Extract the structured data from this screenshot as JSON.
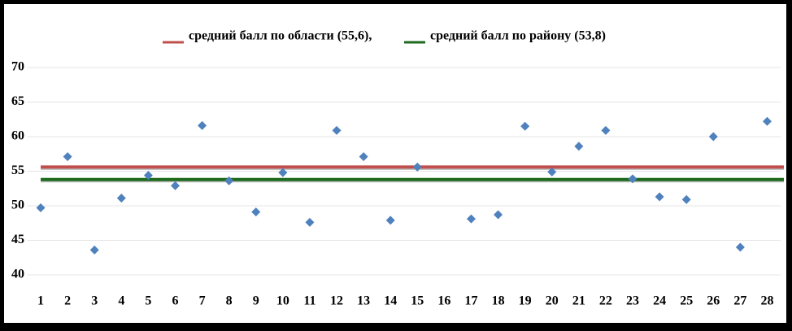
{
  "chart_data": {
    "type": "scatter",
    "categories": [
      "1",
      "2",
      "3",
      "4",
      "5",
      "6",
      "7",
      "8",
      "9",
      "10",
      "11",
      "12",
      "13",
      "14",
      "15",
      "16",
      "17",
      "18",
      "19",
      "20",
      "21",
      "22",
      "23",
      "24",
      "25",
      "26",
      "27",
      "28"
    ],
    "series": [
      {
        "color": "#4f81bd",
        "values": [
          49.7,
          57.1,
          43.6,
          51.1,
          54.4,
          52.9,
          61.6,
          53.6,
          49.1,
          54.8,
          47.6,
          60.9,
          57.1,
          47.9,
          55.6,
          null,
          48.1,
          48.7,
          61.5,
          54.9,
          58.6,
          60.9,
          53.9,
          51.3,
          50.9,
          60.0,
          44.0,
          62.2
        ]
      }
    ],
    "reference_lines": [
      {
        "name": "средний балл по области (55,6),",
        "value": 55.6,
        "color": "#c0504d"
      },
      {
        "name": "средний балл по району (53,8)",
        "value": 53.8,
        "color": "#1e6a1e"
      }
    ],
    "ylim": [
      40,
      70
    ],
    "yticks": [
      40,
      45,
      50,
      55,
      60,
      65,
      70
    ],
    "grid": true
  }
}
